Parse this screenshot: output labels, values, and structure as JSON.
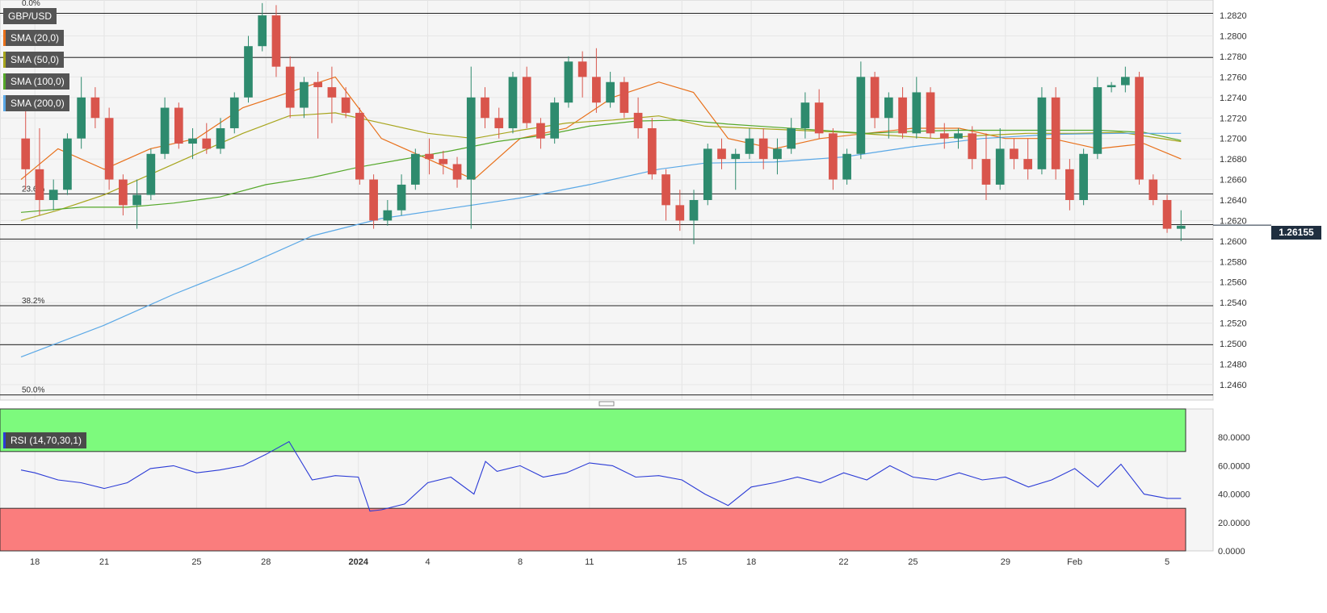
{
  "symbol": "GBP/USD",
  "indicators": [
    {
      "label": "SMA (20,0)",
      "color": "#e8701a"
    },
    {
      "label": "SMA (50,0)",
      "color": "#a7a51c"
    },
    {
      "label": "SMA (100,0)",
      "color": "#55a82a"
    },
    {
      "label": "SMA (200,0)",
      "color": "#5aa8e6"
    }
  ],
  "rsi_label": "RSI (14,70,30,1)",
  "last_price": "1.26155",
  "colors": {
    "bull": "#2e8b6e",
    "bear": "#d9554c",
    "rsi_line": "#2b3bd6",
    "overbought_zone": "#7dfa7d",
    "oversold_zone": "#fa7d7d"
  },
  "chart_data": {
    "type": "candlestick",
    "x_labels": [
      {
        "label": "18",
        "day": 0
      },
      {
        "label": "21",
        "day": 3
      },
      {
        "label": "25",
        "day": 7
      },
      {
        "label": "28",
        "day": 10
      },
      {
        "label": "2024",
        "day": 14
      },
      {
        "label": "4",
        "day": 17
      },
      {
        "label": "8",
        "day": 21
      },
      {
        "label": "11",
        "day": 24
      },
      {
        "label": "15",
        "day": 28
      },
      {
        "label": "18",
        "day": 31
      },
      {
        "label": "22",
        "day": 35
      },
      {
        "label": "25",
        "day": 38
      },
      {
        "label": "29",
        "day": 42
      },
      {
        "label": "Feb",
        "day": 45
      },
      {
        "label": "5",
        "day": 49
      }
    ],
    "x_range_days": [
      -0.6,
      49.8
    ],
    "price_ylim": [
      1.2445,
      1.2835
    ],
    "price_ticks": [
      "1.2460",
      "1.2480",
      "1.2500",
      "1.2520",
      "1.2540",
      "1.2560",
      "1.2580",
      "1.2600",
      "1.2620",
      "1.2640",
      "1.2660",
      "1.2680",
      "1.2700",
      "1.2720",
      "1.2740",
      "1.2760",
      "1.2780",
      "1.2800",
      "1.2820"
    ],
    "horizontal_lines": [
      1.2822,
      1.2779,
      1.2646,
      1.2616,
      1.2602,
      1.2537,
      1.2499,
      1.245
    ],
    "fib_labels": [
      {
        "label": "0.0%",
        "price": 1.2827
      },
      {
        "label": "23.6%",
        "price": 1.2646
      },
      {
        "label": "38.2%",
        "price": 1.2537
      },
      {
        "label": "50.0%",
        "price": 1.245
      }
    ],
    "candles": [
      [
        1.27,
        1.274,
        1.265,
        1.267
      ],
      [
        1.267,
        1.271,
        1.2625,
        1.264
      ],
      [
        1.264,
        1.266,
        1.263,
        1.265
      ],
      [
        1.265,
        1.2705,
        1.2645,
        1.27
      ],
      [
        1.27,
        1.276,
        1.269,
        1.274
      ],
      [
        1.274,
        1.275,
        1.271,
        1.272
      ],
      [
        1.272,
        1.273,
        1.265,
        1.266
      ],
      [
        1.266,
        1.2665,
        1.2625,
        1.2635
      ],
      [
        1.2635,
        1.266,
        1.2612,
        1.2645
      ],
      [
        1.2645,
        1.269,
        1.264,
        1.2685
      ],
      [
        1.2685,
        1.274,
        1.268,
        1.273
      ],
      [
        1.273,
        1.2735,
        1.269,
        1.2695
      ],
      [
        1.2695,
        1.271,
        1.268,
        1.27
      ],
      [
        1.27,
        1.2715,
        1.2685,
        1.269
      ],
      [
        1.269,
        1.272,
        1.2685,
        1.271
      ],
      [
        1.271,
        1.2745,
        1.2705,
        1.274
      ],
      [
        1.274,
        1.28,
        1.2735,
        1.279
      ],
      [
        1.279,
        1.2832,
        1.2785,
        1.282
      ],
      [
        1.282,
        1.283,
        1.276,
        1.277
      ],
      [
        1.277,
        1.278,
        1.272,
        1.273
      ],
      [
        1.273,
        1.276,
        1.272,
        1.2755
      ],
      [
        1.2755,
        1.2765,
        1.27,
        1.275
      ],
      [
        1.275,
        1.277,
        1.2715,
        1.274
      ],
      [
        1.274,
        1.275,
        1.272,
        1.2725
      ],
      [
        1.2725,
        1.273,
        1.2655,
        1.266
      ],
      [
        1.266,
        1.2665,
        1.2612,
        1.262
      ],
      [
        1.262,
        1.264,
        1.2615,
        1.263
      ],
      [
        1.263,
        1.2665,
        1.2625,
        1.2655
      ],
      [
        1.2655,
        1.269,
        1.265,
        1.2685
      ],
      [
        1.2685,
        1.27,
        1.2665,
        1.268
      ],
      [
        1.268,
        1.2688,
        1.2665,
        1.2675
      ],
      [
        1.2675,
        1.2682,
        1.2652,
        1.266
      ],
      [
        1.266,
        1.277,
        1.2612,
        1.274
      ],
      [
        1.274,
        1.275,
        1.271,
        1.272
      ],
      [
        1.272,
        1.273,
        1.27,
        1.271
      ],
      [
        1.271,
        1.2765,
        1.2705,
        1.276
      ],
      [
        1.276,
        1.277,
        1.271,
        1.2715
      ],
      [
        1.2715,
        1.272,
        1.269,
        1.27
      ],
      [
        1.27,
        1.274,
        1.2695,
        1.2735
      ],
      [
        1.2735,
        1.278,
        1.273,
        1.2775
      ],
      [
        1.2775,
        1.2785,
        1.274,
        1.276
      ],
      [
        1.276,
        1.2788,
        1.2725,
        1.2735
      ],
      [
        1.2735,
        1.2765,
        1.273,
        1.2755
      ],
      [
        1.2755,
        1.276,
        1.272,
        1.2725
      ],
      [
        1.2725,
        1.274,
        1.27,
        1.271
      ],
      [
        1.271,
        1.272,
        1.266,
        1.2665
      ],
      [
        1.2665,
        1.267,
        1.262,
        1.2635
      ],
      [
        1.2635,
        1.265,
        1.261,
        1.262
      ],
      [
        1.262,
        1.265,
        1.2597,
        1.264
      ],
      [
        1.264,
        1.2695,
        1.2635,
        1.269
      ],
      [
        1.269,
        1.27,
        1.267,
        1.268
      ],
      [
        1.268,
        1.269,
        1.265,
        1.2685
      ],
      [
        1.2685,
        1.271,
        1.268,
        1.27
      ],
      [
        1.27,
        1.271,
        1.267,
        1.268
      ],
      [
        1.268,
        1.27,
        1.2665,
        1.269
      ],
      [
        1.269,
        1.272,
        1.2685,
        1.271
      ],
      [
        1.271,
        1.2745,
        1.27,
        1.2735
      ],
      [
        1.2735,
        1.2748,
        1.27,
        1.2705
      ],
      [
        1.2705,
        1.271,
        1.265,
        1.266
      ],
      [
        1.266,
        1.269,
        1.2655,
        1.2685
      ],
      [
        1.2685,
        1.2775,
        1.268,
        1.276
      ],
      [
        1.276,
        1.2765,
        1.271,
        1.272
      ],
      [
        1.272,
        1.2745,
        1.27,
        1.274
      ],
      [
        1.274,
        1.275,
        1.27,
        1.2705
      ],
      [
        1.2705,
        1.276,
        1.27,
        1.2745
      ],
      [
        1.2745,
        1.275,
        1.27,
        1.2705
      ],
      [
        1.2705,
        1.2715,
        1.269,
        1.27
      ],
      [
        1.27,
        1.271,
        1.269,
        1.2705
      ],
      [
        1.2705,
        1.2712,
        1.267,
        1.268
      ],
      [
        1.268,
        1.2705,
        1.264,
        1.2655
      ],
      [
        1.2655,
        1.271,
        1.265,
        1.269
      ],
      [
        1.269,
        1.27,
        1.267,
        1.268
      ],
      [
        1.268,
        1.27,
        1.266,
        1.267
      ],
      [
        1.267,
        1.275,
        1.2665,
        1.274
      ],
      [
        1.274,
        1.275,
        1.266,
        1.267
      ],
      [
        1.267,
        1.268,
        1.263,
        1.264
      ],
      [
        1.264,
        1.269,
        1.2635,
        1.2685
      ],
      [
        1.2685,
        1.276,
        1.268,
        1.275
      ],
      [
        1.275,
        1.2755,
        1.2745,
        1.2752
      ],
      [
        1.2752,
        1.277,
        1.2745,
        1.276
      ],
      [
        1.276,
        1.2765,
        1.2655,
        1.266
      ],
      [
        1.266,
        1.2665,
        1.2635,
        1.264
      ],
      [
        1.264,
        1.2645,
        1.2608,
        1.2612
      ],
      [
        1.2612,
        1.263,
        1.26,
        1.2615
      ]
    ],
    "sma": [
      {
        "name": "SMA (20,0)",
        "color": "#e8701a",
        "points": [
          [
            -0.6,
            1.266
          ],
          [
            1,
            1.269
          ],
          [
            3,
            1.267
          ],
          [
            5,
            1.269
          ],
          [
            7,
            1.27
          ],
          [
            9,
            1.273
          ],
          [
            11,
            1.2745
          ],
          [
            13,
            1.276
          ],
          [
            15,
            1.27
          ],
          [
            17,
            1.268
          ],
          [
            19,
            1.266
          ],
          [
            21,
            1.27
          ],
          [
            23,
            1.271
          ],
          [
            25,
            1.274
          ],
          [
            27,
            1.2755
          ],
          [
            28.5,
            1.2745
          ],
          [
            30,
            1.27
          ],
          [
            32,
            1.269
          ],
          [
            34,
            1.27
          ],
          [
            36,
            1.2705
          ],
          [
            38,
            1.271
          ],
          [
            40,
            1.271
          ],
          [
            42,
            1.27
          ],
          [
            44,
            1.27
          ],
          [
            46,
            1.269
          ],
          [
            48,
            1.2695
          ],
          [
            49.6,
            1.268
          ]
        ]
      },
      {
        "name": "SMA (50,0)",
        "color": "#a7a51c",
        "points": [
          [
            -0.6,
            1.262
          ],
          [
            1,
            1.263
          ],
          [
            3,
            1.2645
          ],
          [
            5,
            1.2665
          ],
          [
            7,
            1.2685
          ],
          [
            9,
            1.2705
          ],
          [
            11,
            1.2722
          ],
          [
            13,
            1.2725
          ],
          [
            15,
            1.2715
          ],
          [
            17,
            1.2705
          ],
          [
            19,
            1.27
          ],
          [
            21,
            1.2708
          ],
          [
            23,
            1.2715
          ],
          [
            25,
            1.2718
          ],
          [
            27,
            1.2722
          ],
          [
            29,
            1.2712
          ],
          [
            31,
            1.271
          ],
          [
            33,
            1.2708
          ],
          [
            35,
            1.2706
          ],
          [
            37,
            1.2703
          ],
          [
            39,
            1.27
          ],
          [
            41,
            1.2703
          ],
          [
            43,
            1.2705
          ],
          [
            45,
            1.2705
          ],
          [
            47,
            1.2706
          ],
          [
            49.6,
            1.2697
          ]
        ]
      },
      {
        "name": "SMA (100,0)",
        "color": "#55a82a",
        "points": [
          [
            -0.6,
            1.2628
          ],
          [
            2,
            1.2633
          ],
          [
            4,
            1.2633
          ],
          [
            6,
            1.2637
          ],
          [
            8,
            1.2643
          ],
          [
            10,
            1.2655
          ],
          [
            12,
            1.2662
          ],
          [
            14,
            1.2672
          ],
          [
            16,
            1.268
          ],
          [
            18,
            1.2688
          ],
          [
            20,
            1.2697
          ],
          [
            22,
            1.2703
          ],
          [
            24,
            1.2712
          ],
          [
            26,
            1.2717
          ],
          [
            28,
            1.2718
          ],
          [
            30,
            1.2714
          ],
          [
            32,
            1.2711
          ],
          [
            34,
            1.2708
          ],
          [
            36,
            1.2705
          ],
          [
            38,
            1.2707
          ],
          [
            40,
            1.2708
          ],
          [
            42,
            1.2708
          ],
          [
            44,
            1.2708
          ],
          [
            46,
            1.2708
          ],
          [
            48,
            1.2706
          ],
          [
            49.6,
            1.2698
          ]
        ]
      },
      {
        "name": "SMA (200,0)",
        "color": "#5aa8e6",
        "points": [
          [
            -0.6,
            1.2487
          ],
          [
            3,
            1.2518
          ],
          [
            6,
            1.2548
          ],
          [
            9,
            1.2575
          ],
          [
            12,
            1.2605
          ],
          [
            15,
            1.2622
          ],
          [
            18,
            1.2632
          ],
          [
            21,
            1.2642
          ],
          [
            24,
            1.2655
          ],
          [
            27,
            1.267
          ],
          [
            29,
            1.2676
          ],
          [
            32,
            1.2677
          ],
          [
            35,
            1.2682
          ],
          [
            38,
            1.2692
          ],
          [
            41,
            1.27
          ],
          [
            44,
            1.2704
          ],
          [
            47,
            1.2705
          ],
          [
            49.6,
            1.2705
          ]
        ]
      }
    ],
    "rsi": {
      "ylim": [
        0,
        100
      ],
      "ticks": [
        "0.0000",
        "20.0000",
        "40.0000",
        "60.0000",
        "80.0000"
      ],
      "overbought": 70,
      "oversold": 30,
      "points": [
        [
          -0.6,
          57
        ],
        [
          0,
          55
        ],
        [
          1,
          50
        ],
        [
          2,
          48
        ],
        [
          3,
          44
        ],
        [
          4,
          48
        ],
        [
          5,
          58
        ],
        [
          6,
          60
        ],
        [
          7,
          55
        ],
        [
          8,
          57
        ],
        [
          9,
          60
        ],
        [
          10,
          68
        ],
        [
          11,
          77
        ],
        [
          12,
          50
        ],
        [
          13,
          53
        ],
        [
          14,
          52
        ],
        [
          14.5,
          28
        ],
        [
          15,
          29
        ],
        [
          16,
          33
        ],
        [
          17,
          48
        ],
        [
          18,
          52
        ],
        [
          19,
          40
        ],
        [
          19.5,
          63
        ],
        [
          20,
          56
        ],
        [
          21,
          60
        ],
        [
          22,
          52
        ],
        [
          23,
          55
        ],
        [
          24,
          62
        ],
        [
          25,
          60
        ],
        [
          26,
          52
        ],
        [
          27,
          53
        ],
        [
          28,
          50
        ],
        [
          29,
          40
        ],
        [
          30,
          32
        ],
        [
          31,
          45
        ],
        [
          32,
          48
        ],
        [
          33,
          52
        ],
        [
          34,
          48
        ],
        [
          35,
          55
        ],
        [
          36,
          50
        ],
        [
          37,
          60
        ],
        [
          38,
          52
        ],
        [
          39,
          50
        ],
        [
          40,
          55
        ],
        [
          41,
          50
        ],
        [
          42,
          52
        ],
        [
          43,
          45
        ],
        [
          44,
          50
        ],
        [
          45,
          58
        ],
        [
          46,
          45
        ],
        [
          47,
          61
        ],
        [
          48,
          40
        ],
        [
          49,
          37
        ],
        [
          49.6,
          37
        ]
      ]
    }
  }
}
